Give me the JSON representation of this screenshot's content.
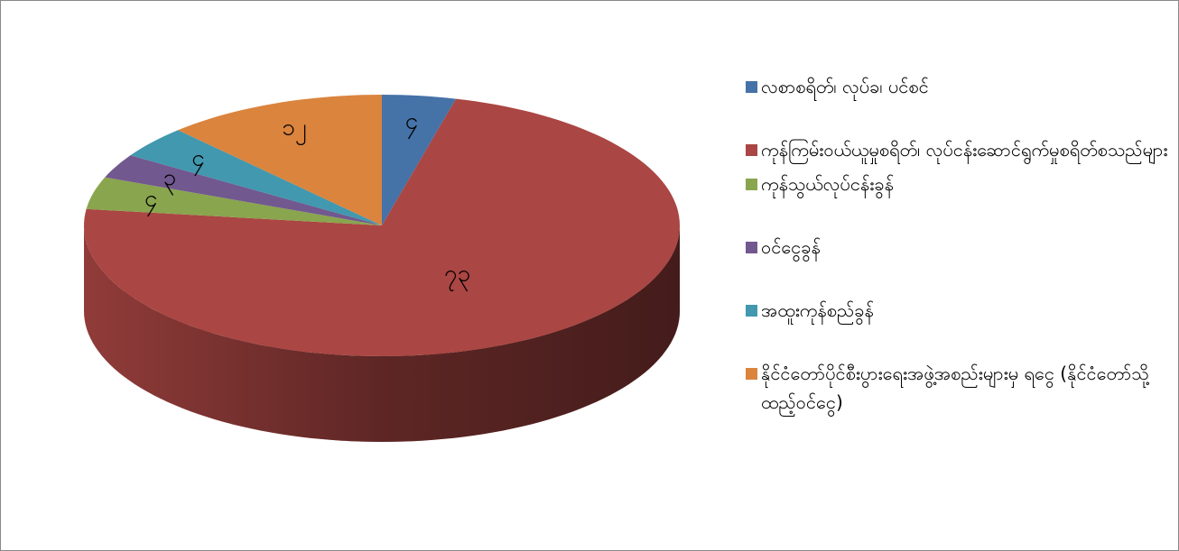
{
  "chart_data": {
    "type": "pie",
    "categories": [
      "လစာစရိတ်၊ လုပ်ခ၊ ပင်စင်",
      "ကုန်ကြမ်းဝယ်ယူမှုစရိတ်၊ လုပ်ငန်းဆောင်ရွက်မှုစရိတ်စသည်များ",
      "ကုန်သွယ်လုပ်ငန်းခွန်",
      "ဝင်ငွေခွန်",
      "အထူးကုန်စည်ခွန်",
      "နိုင်ငံတော်ပိုင်စီးပွားရေးအဖွဲ့အစည်းများမှ ရငွေ (နိုင်ငံတော်သို့ထည့်ဝင်ငွေ)"
    ],
    "values": [
      4,
      73,
      4,
      3,
      4,
      12
    ],
    "value_labels": [
      "၄",
      "၇၃",
      "၄",
      "၃",
      "၄",
      "၁၂"
    ],
    "colors": [
      "#4572a7",
      "#aa4643",
      "#89a54e",
      "#71588f",
      "#4198af",
      "#db843d"
    ],
    "legend": "right"
  }
}
